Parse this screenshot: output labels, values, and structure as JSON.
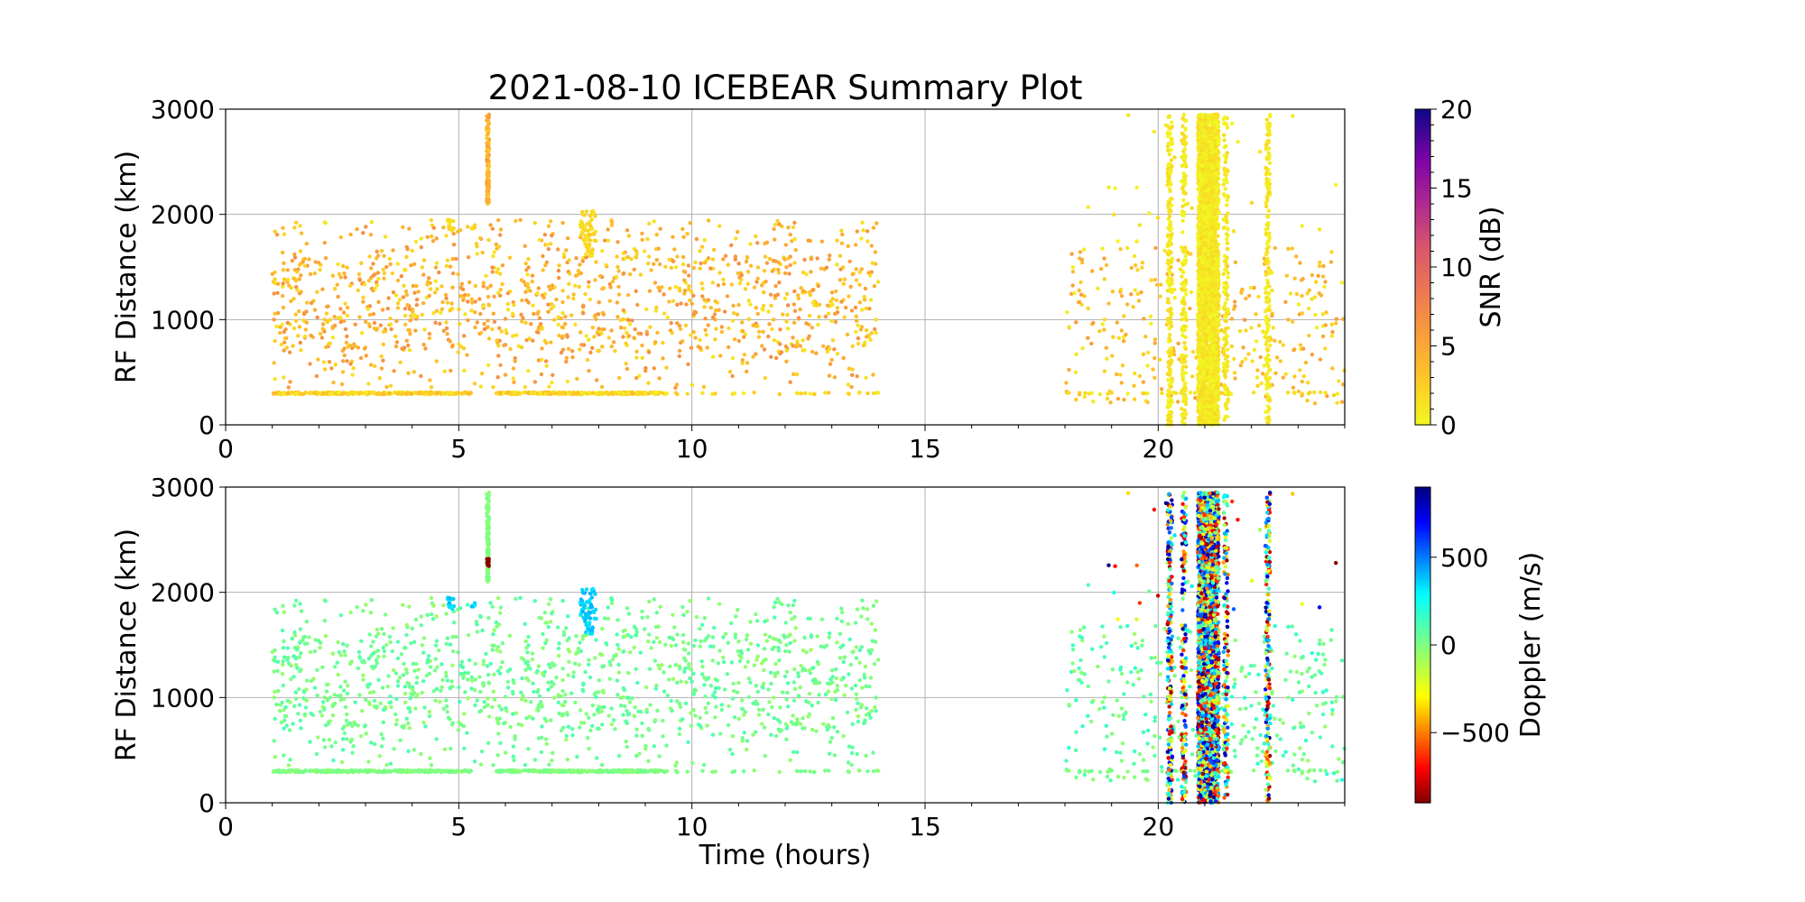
{
  "chart_data": [
    {
      "type": "scatter",
      "title": "2021-08-10 ICEBEAR Summary Plot",
      "xlabel": "",
      "ylabel": "RF Distance (km)",
      "xlim": [
        0,
        24
      ],
      "ylim": [
        0,
        3000
      ],
      "xticks": [
        "0",
        "5",
        "10",
        "15",
        "20"
      ],
      "yticks": [
        "0",
        "1000",
        "2000",
        "3000"
      ],
      "grid": true,
      "color_variable": "snr",
      "colorbar": {
        "label": "SNR (dB)",
        "range": [
          0,
          20
        ],
        "ticks": [
          "0",
          "5",
          "10",
          "15",
          "20"
        ],
        "colormap": "plasma_r"
      }
    },
    {
      "type": "scatter",
      "xlabel": "Time (hours)",
      "ylabel": "RF Distance (km)",
      "xlim": [
        0,
        24
      ],
      "ylim": [
        0,
        3000
      ],
      "xticks": [
        "0",
        "5",
        "10",
        "15",
        "20"
      ],
      "yticks": [
        "0",
        "1000",
        "2000",
        "3000"
      ],
      "grid": true,
      "color_variable": "doppler",
      "colorbar": {
        "label": "Doppler (m/s)",
        "range": [
          -900,
          900
        ],
        "ticks": [
          "500",
          "0",
          "−500"
        ],
        "tick_values": [
          500,
          0,
          -500
        ],
        "colormap": "jet_r"
      }
    }
  ],
  "point_clusters": [
    {
      "t": [
        1.0,
        5.3
      ],
      "km": [
        290,
        310
      ],
      "n": 260,
      "snr": [
        0.5,
        4
      ],
      "doppler": [
        -40,
        40
      ]
    },
    {
      "t": [
        5.8,
        9.4
      ],
      "km": [
        290,
        310
      ],
      "n": 260,
      "snr": [
        0.5,
        4
      ],
      "doppler": [
        -40,
        40
      ]
    },
    {
      "t": [
        9.4,
        14.0
      ],
      "km": [
        290,
        310
      ],
      "n": 30,
      "snr": [
        0.5,
        3
      ],
      "doppler": [
        -40,
        40
      ]
    },
    {
      "t": [
        1.0,
        14.0
      ],
      "km": [
        350,
        1950
      ],
      "n": 1300,
      "snr": [
        1,
        7
      ],
      "doppler": [
        -60,
        120
      ]
    },
    {
      "t": [
        5.6,
        5.65
      ],
      "km": [
        2100,
        2950
      ],
      "n": 120,
      "snr": [
        2,
        6
      ],
      "doppler": [
        -40,
        20
      ]
    },
    {
      "t": [
        5.6,
        5.65
      ],
      "km": [
        2240,
        2320
      ],
      "n": 12,
      "snr": [
        3,
        6
      ],
      "doppler": [
        -900,
        -850
      ]
    },
    {
      "t": [
        7.6,
        7.95
      ],
      "km": [
        1600,
        2050
      ],
      "n": 60,
      "snr": [
        1,
        3
      ],
      "doppler": [
        320,
        420
      ]
    },
    {
      "t": [
        4.75,
        4.9
      ],
      "km": [
        1840,
        1950
      ],
      "n": 14,
      "snr": [
        1,
        3
      ],
      "doppler": [
        320,
        420
      ]
    },
    {
      "t": [
        5.25,
        5.35
      ],
      "km": [
        1860,
        1900
      ],
      "n": 6,
      "snr": [
        1,
        3
      ],
      "doppler": [
        320,
        420
      ]
    },
    {
      "t": [
        18.0,
        24.0
      ],
      "km": [
        200,
        1700
      ],
      "n": 330,
      "snr": [
        0.5,
        6
      ],
      "doppler": [
        -60,
        200
      ]
    },
    {
      "t": [
        18.0,
        24.0
      ],
      "km": [
        290,
        310
      ],
      "n": 40,
      "snr": [
        0.5,
        3
      ],
      "doppler": [
        -40,
        40
      ]
    },
    {
      "t": [
        20.2,
        20.3
      ],
      "km": [
        0,
        2950
      ],
      "n": 220,
      "snr": [
        0,
        2
      ],
      "doppler": [
        -900,
        900
      ]
    },
    {
      "t": [
        20.5,
        20.6
      ],
      "km": [
        0,
        2950
      ],
      "n": 160,
      "snr": [
        0,
        2
      ],
      "doppler": [
        -900,
        900
      ]
    },
    {
      "t": [
        20.85,
        21.3
      ],
      "km": [
        0,
        2950
      ],
      "n": 2600,
      "snr": [
        0,
        2
      ],
      "doppler": [
        -900,
        900
      ]
    },
    {
      "t": [
        21.4,
        21.5
      ],
      "km": [
        0,
        2950
      ],
      "n": 150,
      "snr": [
        0,
        2
      ],
      "doppler": [
        -900,
        900
      ]
    },
    {
      "t": [
        22.3,
        22.4
      ],
      "km": [
        0,
        2950
      ],
      "n": 180,
      "snr": [
        0,
        2
      ],
      "doppler": [
        -900,
        900
      ]
    },
    {
      "t": [
        18.5,
        24.0
      ],
      "km": [
        1700,
        2950
      ],
      "n": 25,
      "snr": [
        0,
        2
      ],
      "doppler": [
        -900,
        900
      ]
    }
  ]
}
